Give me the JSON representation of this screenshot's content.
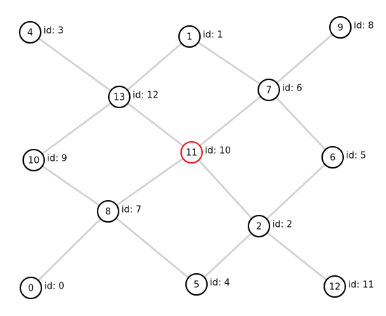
{
  "graph": {
    "selected_node": "11",
    "colors": {
      "edge": "#d0d0d0",
      "node_stroke": "#000000",
      "selected_stroke": "#e01b1b",
      "node_fill": "#ffffff"
    },
    "nodes": [
      {
        "key": "0",
        "label": "0",
        "id_text": "id: 0"
      },
      {
        "key": "1",
        "label": "1",
        "id_text": "id: 1"
      },
      {
        "key": "2",
        "label": "2",
        "id_text": "id: 2"
      },
      {
        "key": "4",
        "label": "4",
        "id_text": "id: 3"
      },
      {
        "key": "5",
        "label": "5",
        "id_text": "id: 4"
      },
      {
        "key": "6",
        "label": "6",
        "id_text": "id: 5"
      },
      {
        "key": "7",
        "label": "7",
        "id_text": "id: 6"
      },
      {
        "key": "8",
        "label": "8",
        "id_text": "id: 7"
      },
      {
        "key": "9",
        "label": "9",
        "id_text": "id: 8"
      },
      {
        "key": "10",
        "label": "10",
        "id_text": "id: 9"
      },
      {
        "key": "11",
        "label": "11",
        "id_text": "id: 10"
      },
      {
        "key": "12",
        "label": "12",
        "id_text": "id: 11"
      },
      {
        "key": "13",
        "label": "13",
        "id_text": "id: 12"
      }
    ],
    "edges": [
      [
        "4",
        "13"
      ],
      [
        "13",
        "1"
      ],
      [
        "13",
        "10"
      ],
      [
        "13",
        "11"
      ],
      [
        "1",
        "7"
      ],
      [
        "9",
        "7"
      ],
      [
        "7",
        "11"
      ],
      [
        "7",
        "6"
      ],
      [
        "10",
        "8"
      ],
      [
        "11",
        "8"
      ],
      [
        "11",
        "2"
      ],
      [
        "6",
        "2"
      ],
      [
        "8",
        "0"
      ],
      [
        "8",
        "5"
      ],
      [
        "5",
        "2"
      ],
      [
        "2",
        "12"
      ]
    ]
  }
}
